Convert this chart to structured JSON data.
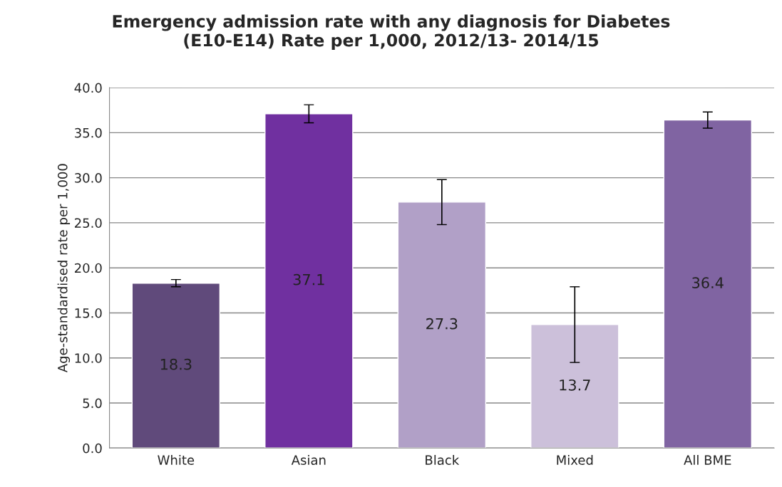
{
  "chart_data": {
    "type": "bar",
    "title": "Emergency admission rate with any diagnosis for Diabetes\n(E10-E14) Rate per 1,000, 2012/13- 2014/15",
    "ylabel": "Age-standardised rate per 1,000",
    "categories": [
      "White",
      "Asian",
      "Black",
      "Mixed",
      "All BME"
    ],
    "values": [
      18.3,
      37.1,
      27.3,
      13.7,
      36.4
    ],
    "colors": [
      "#604a7b",
      "#7030a0",
      "#b1a0c7",
      "#ccc0da",
      "#8064a2"
    ],
    "errors": [
      [
        17.9,
        18.7
      ],
      [
        36.1,
        38.1
      ],
      [
        24.8,
        29.8
      ],
      [
        9.5,
        17.9
      ],
      [
        35.5,
        37.3
      ]
    ],
    "data_labels": true,
    "ylim": [
      0,
      40
    ],
    "yticks": [
      {
        "value": 0,
        "label": "0.0"
      },
      {
        "value": 5,
        "label": "5.0"
      },
      {
        "value": 10,
        "label": "10.0"
      },
      {
        "value": 15,
        "label": "15.0"
      },
      {
        "value": 20,
        "label": "20.0"
      },
      {
        "value": 25,
        "label": "25.0"
      },
      {
        "value": 30,
        "label": "30.0"
      },
      {
        "value": 35,
        "label": "35.0"
      },
      {
        "value": 40,
        "label": "40.0"
      }
    ],
    "grid": "y",
    "legend": false
  }
}
